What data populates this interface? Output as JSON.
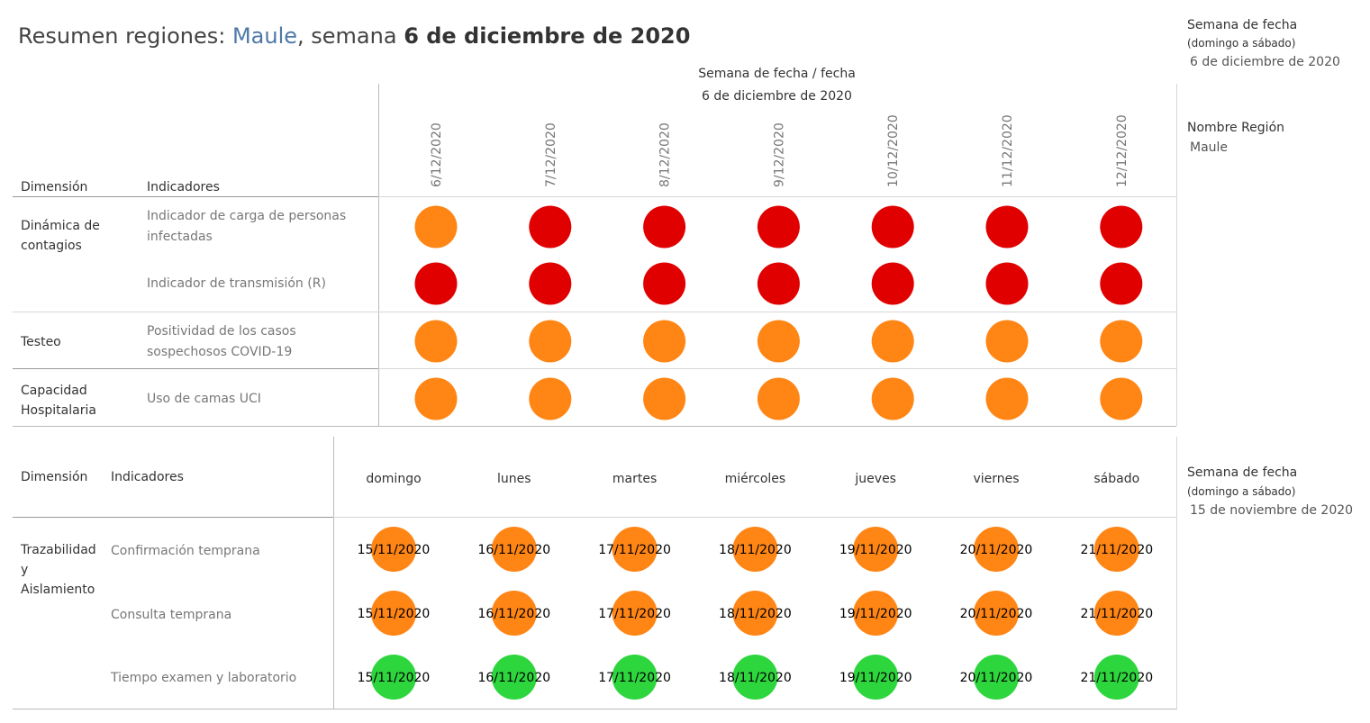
{
  "title": {
    "prefix": "Resumen regiones: ",
    "region": "Maule",
    "mid": ", semana ",
    "week": "6 de diciembre de 2020"
  },
  "side_filters": {
    "week_top": {
      "label": "Semana de fecha",
      "sub": "(domingo a sábado)",
      "value": "6 de diciembre de 2020"
    },
    "region": {
      "label": "Nombre Región",
      "value": "Maule"
    },
    "week_bottom": {
      "label": "Semana de fecha",
      "sub": "(domingo a sábado)",
      "value": "15 de noviembre de 2020"
    }
  },
  "colors": {
    "red": "#e00000",
    "orange": "#ff8515",
    "green": "#2ed63e"
  },
  "top_table": {
    "header_line1": "Semana de fecha  /  fecha",
    "header_line2": "6 de diciembre de 2020",
    "col_dimension": "Dimensión",
    "col_indicators": "Indicadores",
    "dims": [
      "Dinámica de contagios",
      "Testeo",
      "Capacidad Hospitalaria"
    ],
    "indicators": [
      "Indicador de carga de personas infectadas",
      "Indicador de transmisión (R)",
      "Positividad de los casos sospechosos COVID-19",
      "Uso de camas UCI"
    ]
  },
  "bottom_table": {
    "col_dimension": "Dimensión",
    "col_indicators": "Indicadores",
    "dims": [
      "Trazabilidad y Aislamiento"
    ],
    "indicators": [
      "Confirmación temprana",
      "Consulta temprana",
      "Tiempo examen y laboratorio"
    ]
  },
  "chart_data": [
    {
      "type": "heatmap",
      "x": [
        "6/12/2020",
        "7/12/2020",
        "8/12/2020",
        "9/12/2020",
        "10/12/2020",
        "11/12/2020",
        "12/12/2020"
      ],
      "rows": [
        {
          "indicator": "Indicador de carga de personas infectadas",
          "status": [
            "orange",
            "red",
            "red",
            "red",
            "red",
            "red",
            "red"
          ]
        },
        {
          "indicator": "Indicador de transmisión (R)",
          "status": [
            "red",
            "red",
            "red",
            "red",
            "red",
            "red",
            "red"
          ]
        },
        {
          "indicator": "Positividad de los casos sospechosos COVID-19",
          "status": [
            "orange",
            "orange",
            "orange",
            "orange",
            "orange",
            "orange",
            "orange"
          ]
        },
        {
          "indicator": "Uso de camas UCI",
          "status": [
            "orange",
            "orange",
            "orange",
            "orange",
            "orange",
            "orange",
            "orange"
          ]
        }
      ]
    },
    {
      "type": "heatmap",
      "x": [
        "domingo",
        "lunes",
        "martes",
        "miércoles",
        "jueves",
        "viernes",
        "sábado"
      ],
      "dates": [
        "15/11/2020",
        "16/11/2020",
        "17/11/2020",
        "18/11/2020",
        "19/11/2020",
        "20/11/2020",
        "21/11/2020"
      ],
      "rows": [
        {
          "indicator": "Confirmación temprana",
          "status": [
            "orange",
            "orange",
            "orange",
            "orange",
            "orange",
            "orange",
            "orange"
          ]
        },
        {
          "indicator": "Consulta temprana",
          "status": [
            "orange",
            "orange",
            "orange",
            "orange",
            "orange",
            "orange",
            "orange"
          ]
        },
        {
          "indicator": "Tiempo examen y laboratorio",
          "status": [
            "green",
            "green",
            "green",
            "green",
            "green",
            "green",
            "green"
          ]
        }
      ]
    }
  ]
}
